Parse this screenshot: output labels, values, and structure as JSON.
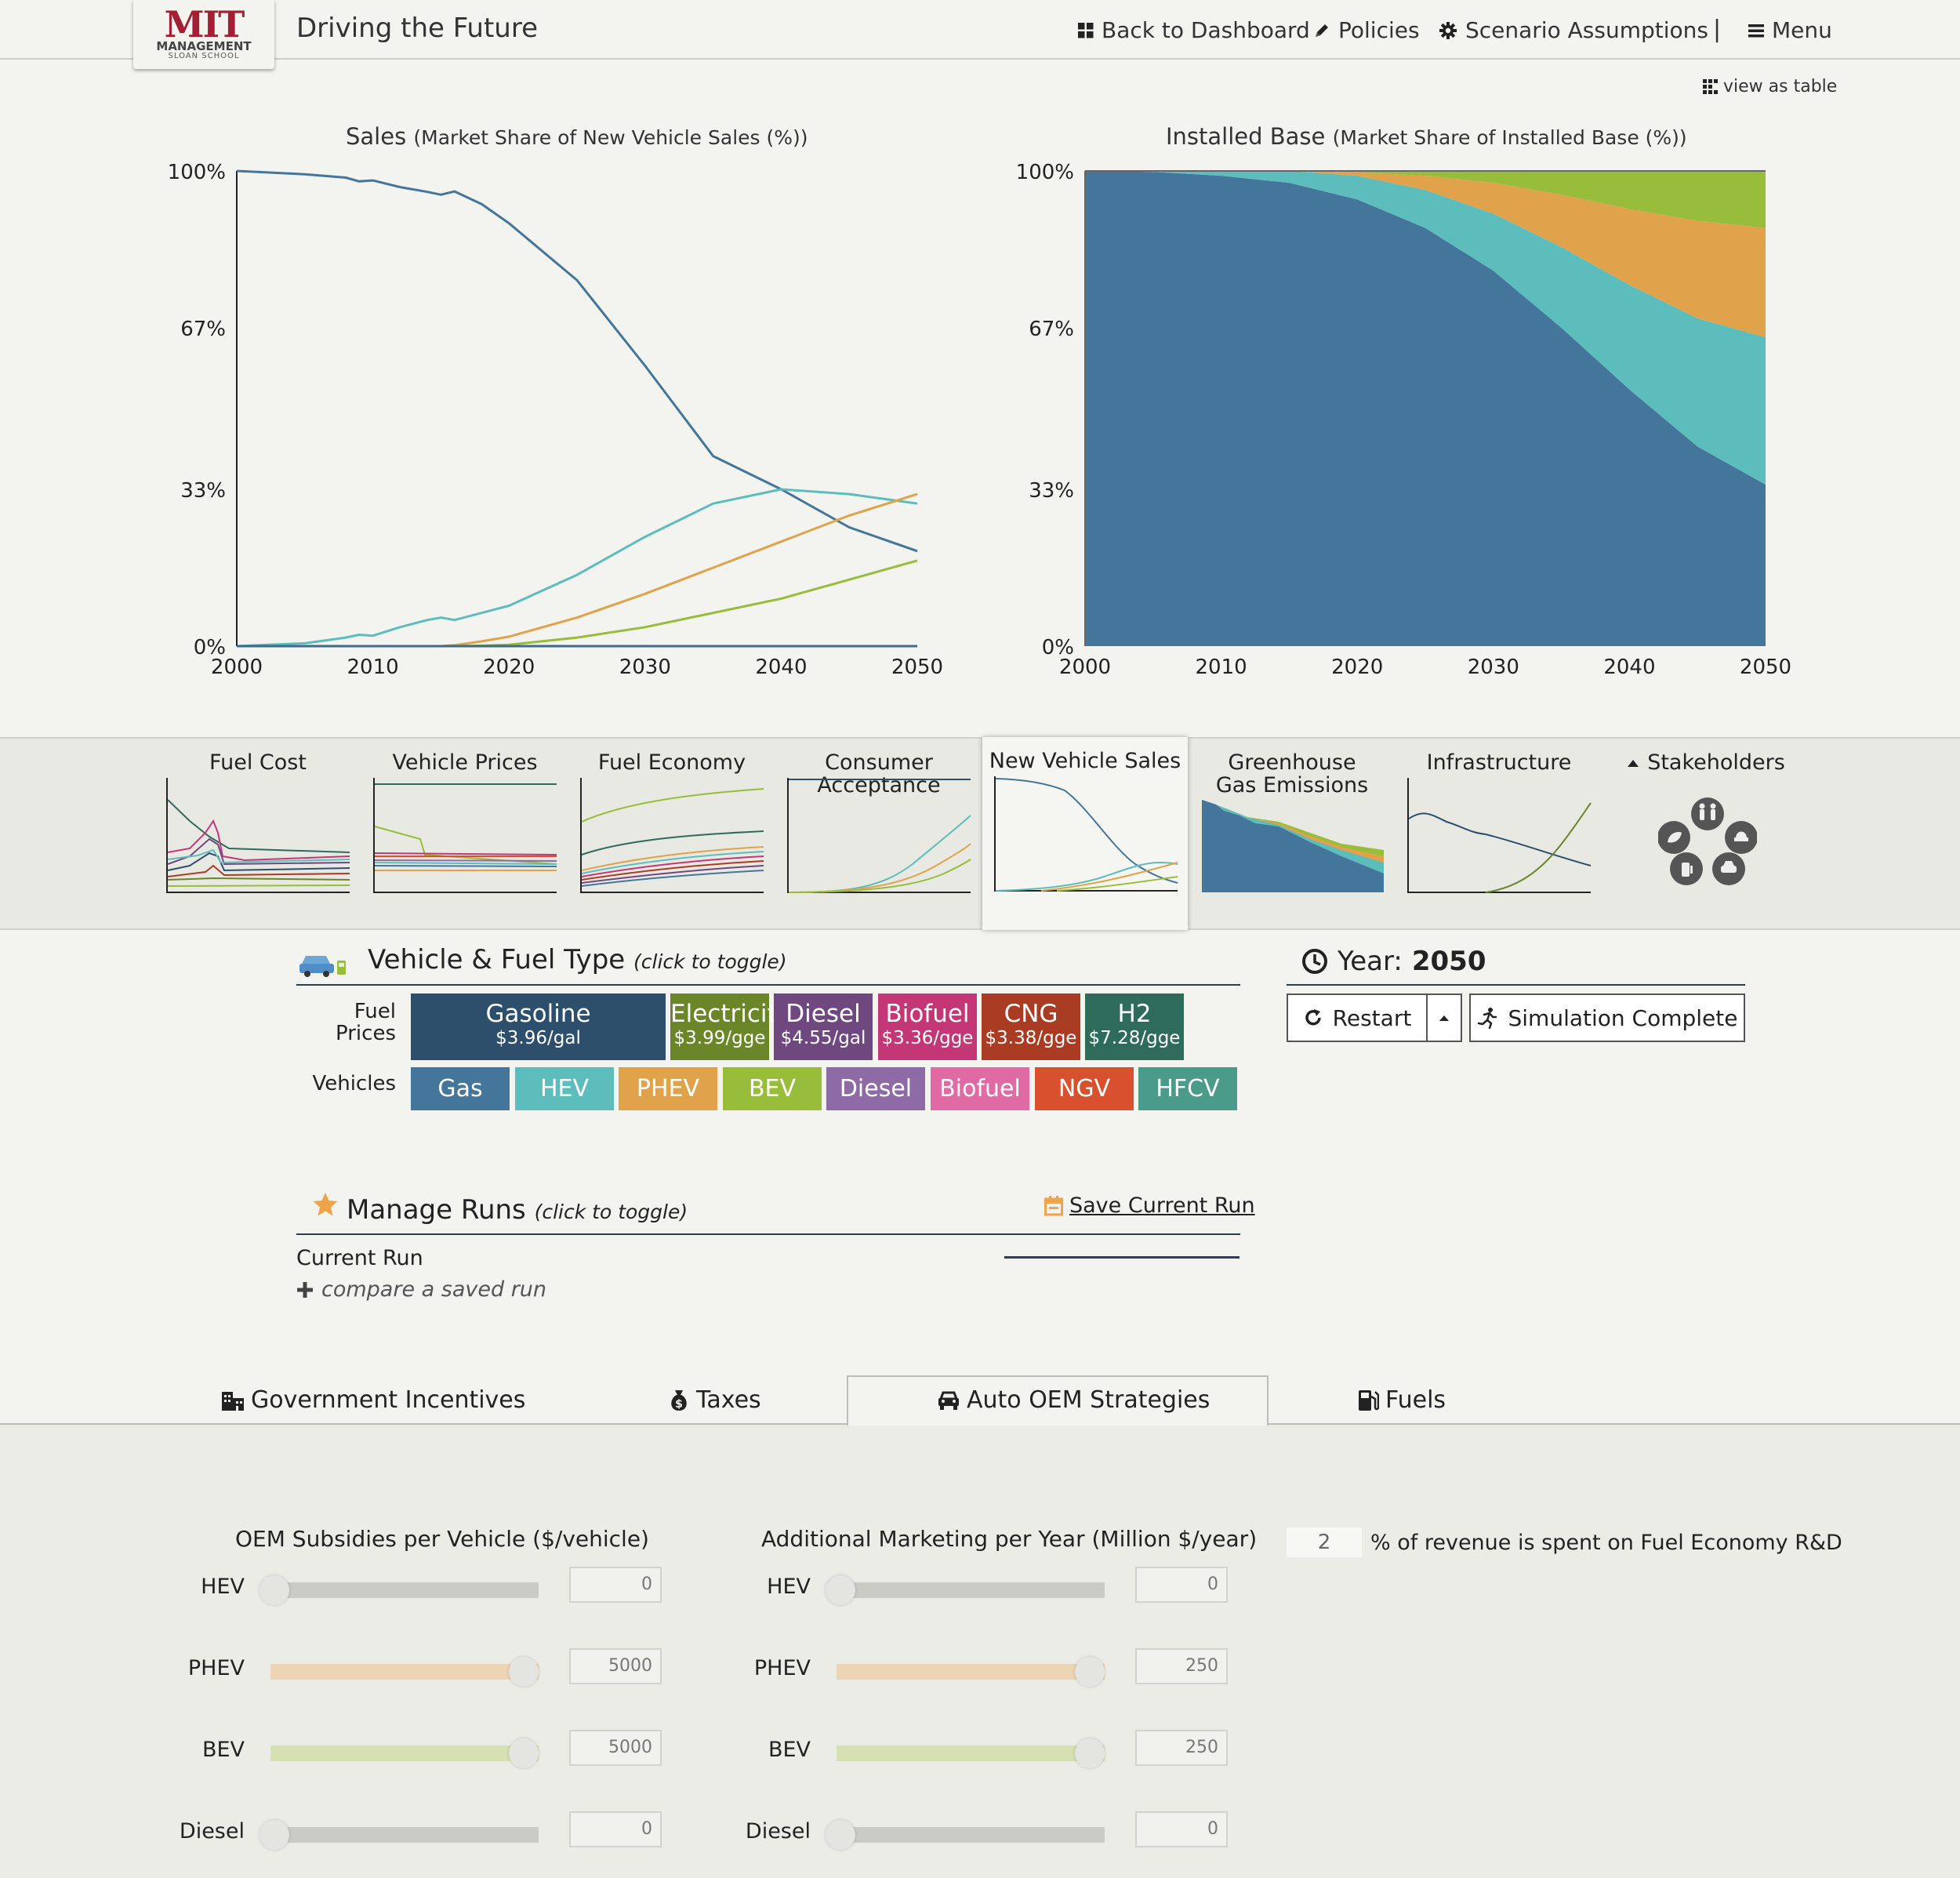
{
  "header": {
    "logo_mit": "MIT",
    "logo_management": "MANAGEMENT",
    "logo_school": "SLOAN SCHOOL",
    "app_title": "Driving the Future",
    "nav": {
      "dashboard": "Back to Dashboard",
      "policies": "Policies",
      "assumptions": "Scenario Assumptions",
      "divider": "|",
      "menu": "Menu"
    },
    "view_table": "view as table"
  },
  "charts": {
    "sales": {
      "title": "Sales",
      "subtitle": "(Market Share of New Vehicle Sales (%))"
    },
    "installed": {
      "title": "Installed Base",
      "subtitle": "(Market Share of Installed Base (%))"
    }
  },
  "chart_data": [
    {
      "type": "line",
      "title": "Sales (Market Share of New Vehicle Sales (%))",
      "xlim": [
        2000,
        2050
      ],
      "ylim": [
        0,
        100
      ],
      "x_ticks": [
        "2000",
        "2010",
        "2020",
        "2030",
        "2040",
        "2050"
      ],
      "y_ticks": [
        "0%",
        "33%",
        "67%",
        "100%"
      ],
      "x": [
        2000,
        2005,
        2008,
        2009,
        2010,
        2012,
        2014,
        2015,
        2016,
        2018,
        2020,
        2025,
        2030,
        2035,
        2040,
        2045,
        2050
      ],
      "series": [
        {
          "color": "#44759a",
          "values": [
            100,
            99.3,
            98.6,
            97.8,
            98.0,
            96.6,
            95.6,
            95.0,
            95.7,
            93.0,
            89.0,
            77.0,
            59.0,
            40.0,
            33.0,
            25.0,
            20.0
          ]
        },
        {
          "color": "#5dbdbd",
          "values": [
            0,
            0.6,
            1.8,
            2.4,
            2.2,
            4.0,
            5.5,
            6.0,
            5.5,
            7.0,
            8.5,
            15.0,
            23.0,
            30.0,
            33.0,
            32.0,
            30.0
          ]
        },
        {
          "color": "#e0a24a",
          "values": [
            0,
            0,
            0,
            0,
            0,
            0,
            0,
            0,
            0.2,
            1.0,
            2.0,
            6.0,
            11.0,
            16.5,
            22.0,
            27.5,
            32.0
          ]
        },
        {
          "color": "#97bd3a",
          "values": [
            0,
            0,
            0,
            0,
            0,
            0,
            0,
            0,
            0,
            0.1,
            0.3,
            1.8,
            4.0,
            7.0,
            10.0,
            14.0,
            18.0
          ]
        },
        {
          "color": "#3d6a8a",
          "values": [
            0,
            0,
            0,
            0,
            0,
            0,
            0,
            0,
            0,
            0,
            0,
            0,
            0,
            0,
            0,
            0,
            0
          ]
        }
      ]
    },
    {
      "type": "area",
      "title": "Installed Base (Market Share of Installed Base (%))",
      "xlim": [
        2000,
        2050
      ],
      "ylim": [
        0,
        100
      ],
      "x_ticks": [
        "2000",
        "2010",
        "2020",
        "2030",
        "2040",
        "2050"
      ],
      "y_ticks": [
        "0%",
        "33%",
        "67%",
        "100%"
      ],
      "x": [
        2000,
        2005,
        2010,
        2015,
        2020,
        2025,
        2030,
        2035,
        2040,
        2045,
        2050
      ],
      "series": [
        {
          "color": "#44759a",
          "values": [
            100,
            99.8,
            99.0,
            97.5,
            94.0,
            88.0,
            79.0,
            67.0,
            54.0,
            42.0,
            34.0
          ]
        },
        {
          "color": "#5dbdbd",
          "values": [
            0,
            0.2,
            1.0,
            2.5,
            5.0,
            8.0,
            12.0,
            17.0,
            22.0,
            27.0,
            31.0
          ]
        },
        {
          "color": "#e0a24a",
          "values": [
            0,
            0,
            0,
            0,
            0.7,
            3.0,
            6.5,
            11.0,
            16.0,
            20.5,
            23.0
          ]
        },
        {
          "color": "#97bd3a",
          "values": [
            0,
            0,
            0,
            0,
            0.3,
            1.0,
            2.5,
            5.0,
            8.0,
            10.5,
            12.0
          ]
        }
      ]
    }
  ],
  "thumbs": [
    {
      "label": "Fuel Cost"
    },
    {
      "label": "Vehicle Prices"
    },
    {
      "label": "Fuel Economy"
    },
    {
      "label": "Consumer Acceptance"
    },
    {
      "label": "New Vehicle Sales"
    },
    {
      "label": "Greenhouse Gas Emissions"
    },
    {
      "label": "Infrastructure"
    },
    {
      "label": "Stakeholders"
    }
  ],
  "vehicle_fuel": {
    "title": "Vehicle & Fuel Type",
    "hint": "(click to toggle)",
    "fuel_prices_label": "Fuel Prices",
    "vehicles_label": "Vehicles",
    "fuels": [
      {
        "name": "Gasoline",
        "price": "$3.96/gal",
        "color": "#2d4f6b"
      },
      {
        "name": "Electricity",
        "price": "$3.99/gge",
        "color": "#6b8529"
      },
      {
        "name": "Diesel",
        "price": "$4.55/gal",
        "color": "#6f4880"
      },
      {
        "name": "Biofuel",
        "price": "$3.36/gge",
        "color": "#c43777"
      },
      {
        "name": "CNG",
        "price": "$3.38/gge",
        "color": "#a93c22"
      },
      {
        "name": "H2",
        "price": "$7.28/gge",
        "color": "#2e6b5b"
      }
    ],
    "vehicles": [
      {
        "name": "Gas",
        "color": "#44759a"
      },
      {
        "name": "HEV",
        "color": "#5dbdbd"
      },
      {
        "name": "PHEV",
        "color": "#e0a24a"
      },
      {
        "name": "BEV",
        "color": "#97bd3a"
      },
      {
        "name": "Diesel",
        "color": "#8e6ba6"
      },
      {
        "name": "Biofuel",
        "color": "#e06aa3"
      },
      {
        "name": "NGV",
        "color": "#d8502d"
      },
      {
        "name": "HFCV",
        "color": "#4a9b89"
      }
    ]
  },
  "year": {
    "label": "Year:",
    "value": "2050",
    "restart": "Restart",
    "status": "Simulation Complete"
  },
  "runs": {
    "title": "Manage Runs",
    "hint": "(click to toggle)",
    "save": "Save Current Run",
    "current": "Current Run",
    "compare": "compare a saved run"
  },
  "tabs": [
    {
      "label": "Government Incentives"
    },
    {
      "label": "Taxes"
    },
    {
      "label": "Auto OEM Strategies"
    },
    {
      "label": "Fuels"
    }
  ],
  "oem": {
    "subsidies_title": "OEM Subsidies per Vehicle ($/vehicle)",
    "marketing_title": "Additional Marketing per Year (Million $/year)",
    "rd_value": "2",
    "rd_text": "% of revenue is spent on Fuel Economy R&D",
    "rows": [
      {
        "label": "HEV",
        "subsidy": "0",
        "subsidy_fraction": 0,
        "marketing": "0",
        "marketing_fraction": 0,
        "color": "#cbcbc5"
      },
      {
        "label": "PHEV",
        "subsidy": "5000",
        "subsidy_fraction": 1,
        "marketing": "250",
        "marketing_fraction": 1,
        "color": "#edd4b2"
      },
      {
        "label": "BEV",
        "subsidy": "5000",
        "subsidy_fraction": 1,
        "marketing": "250",
        "marketing_fraction": 1,
        "color": "#d6e0b2"
      },
      {
        "label": "Diesel",
        "subsidy": "0",
        "subsidy_fraction": 0,
        "marketing": "0",
        "marketing_fraction": 0,
        "color": "#cbcbc5"
      }
    ]
  }
}
